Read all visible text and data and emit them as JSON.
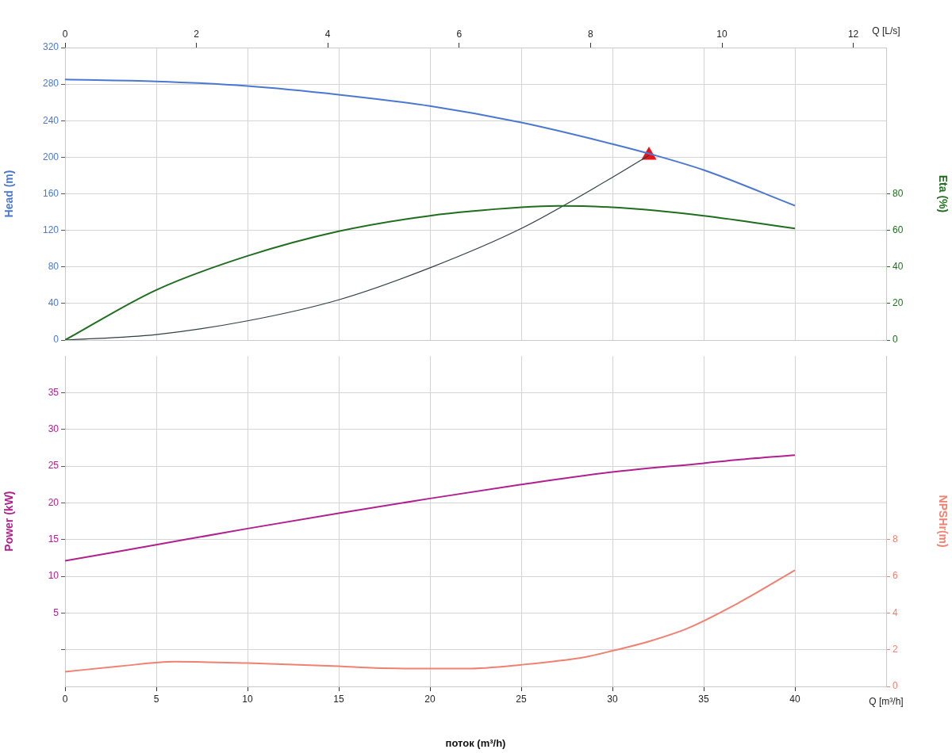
{
  "chart_data": [
    {
      "type": "line",
      "ylabel": "Head (m)",
      "y2label": "Eta (%)",
      "x2label": "Q [L/s]",
      "xlim": [
        0,
        45
      ],
      "xticks": [
        0,
        5,
        10,
        15,
        20,
        25,
        30,
        35,
        40
      ],
      "x2lim": [
        0,
        12.5
      ],
      "x2ticks": [
        0,
        2,
        4,
        6,
        8,
        10,
        12
      ],
      "ylim": [
        0,
        320
      ],
      "yticks": [
        0,
        40,
        80,
        120,
        160,
        200,
        240,
        280,
        320
      ],
      "y2lim": [
        0,
        160
      ],
      "y2ticks": [
        0,
        20,
        40,
        60,
        80
      ],
      "tick_labels": "y",
      "grid": true,
      "legend": false,
      "series": [
        {
          "color": "#4a78d0",
          "x": [
            0,
            5,
            10,
            15,
            20,
            25,
            30,
            32,
            35,
            40
          ],
          "values": [
            285,
            283,
            278,
            268.5,
            256,
            238,
            214.5,
            204,
            186,
            147
          ]
        },
        {
          "color": "#1e6e1e",
          "axis": "y2",
          "x": [
            0,
            5,
            10,
            15,
            20,
            25,
            27,
            30,
            35,
            40
          ],
          "values": [
            0,
            27.4,
            46,
            59.5,
            68,
            72.6,
            73.4,
            72.6,
            68,
            61
          ]
        },
        {
          "color": "#2f3f3f",
          "x": [
            0,
            5,
            10,
            15,
            20,
            25,
            30,
            32
          ],
          "values": [
            0,
            6,
            21,
            44,
            79,
            122,
            178,
            202
          ]
        },
        {
          "type": "scatter",
          "color": "#e8141c",
          "marker": "triangle",
          "x": [
            32
          ],
          "values": [
            202
          ]
        }
      ]
    },
    {
      "type": "line",
      "xlabel": "поток (m³/h)",
      "ylabel": "Power (kW)",
      "y2label": "NPSHr(m)",
      "annotations": [
        "Q [m³/h]"
      ],
      "xlim": [
        0,
        45
      ],
      "xticks": [
        0,
        5,
        10,
        15,
        20,
        25,
        30,
        35,
        40
      ],
      "ylim": [
        -5,
        40
      ],
      "yticks": [
        {
          "value": 0,
          "label": null
        },
        5,
        10,
        15,
        20,
        25,
        30,
        35
      ],
      "y2lim": [
        0,
        18
      ],
      "y2ticks": [
        0,
        2,
        4,
        6,
        8
      ],
      "grid": true,
      "legend": false,
      "series": [
        {
          "color": "#b0208f",
          "x": [
            0,
            5,
            10,
            15,
            20,
            25,
            30,
            35,
            37,
            40
          ],
          "values": [
            12.1,
            14.3,
            16.5,
            18.6,
            20.6,
            22.5,
            24.2,
            25.4,
            25.9,
            26.5
          ]
        },
        {
          "color": "#f08070",
          "axis": "y2",
          "x": [
            0,
            3,
            6,
            10,
            15,
            17,
            20,
            22,
            25,
            28.5,
            30,
            32,
            34.2,
            37,
            40
          ],
          "values": [
            0.8,
            1.1,
            1.35,
            1.27,
            1.1,
            1.0,
            0.97,
            0.97,
            1.18,
            1.6,
            1.94,
            2.45,
            3.2,
            4.6,
            6.33
          ]
        }
      ]
    }
  ]
}
